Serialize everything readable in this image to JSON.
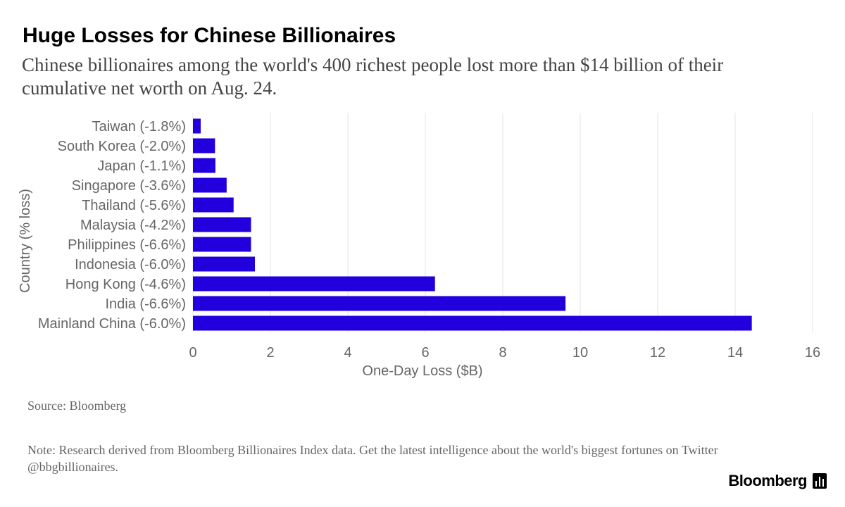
{
  "header": {
    "title": "Huge Losses for Chinese Billionaires",
    "subtitle": "Chinese billionaires among the world's 400 richest people lost more than $14 billion of their cumulative net worth on Aug. 24."
  },
  "footer": {
    "source": "Source: Bloomberg",
    "note": "Note: Research derived from Bloomberg Billionaires Index data. Get the latest intelligence about the world's biggest fortunes on Twitter @bbgbillionaires.",
    "brand": "Bloomberg"
  },
  "colors": {
    "bar": "#2200dd",
    "grid": "#e6e6e6",
    "axis_text": "#666666"
  },
  "chart_data": {
    "type": "bar",
    "orientation": "horizontal",
    "title": "Huge Losses for Chinese Billionaires",
    "xlabel": "One-Day Loss ($B)",
    "ylabel": "Country (% loss)",
    "xlim": [
      0,
      16
    ],
    "xticks": [
      0,
      2,
      4,
      6,
      8,
      10,
      12,
      14,
      16
    ],
    "grid": true,
    "categories": [
      "Taiwan (-1.8%)",
      "South Korea (-2.0%)",
      "Japan (-1.1%)",
      "Singapore (-3.6%)",
      "Thailand (-5.6%)",
      "Malaysia (-4.2%)",
      "Philippines (-6.6%)",
      "Indonesia (-6.0%)",
      "Hong Kong (-4.6%)",
      "India (-6.6%)",
      "Mainland China (-6.0%)"
    ],
    "values": [
      0.2,
      0.57,
      0.58,
      0.87,
      1.05,
      1.5,
      1.5,
      1.6,
      6.25,
      9.62,
      14.43
    ]
  }
}
